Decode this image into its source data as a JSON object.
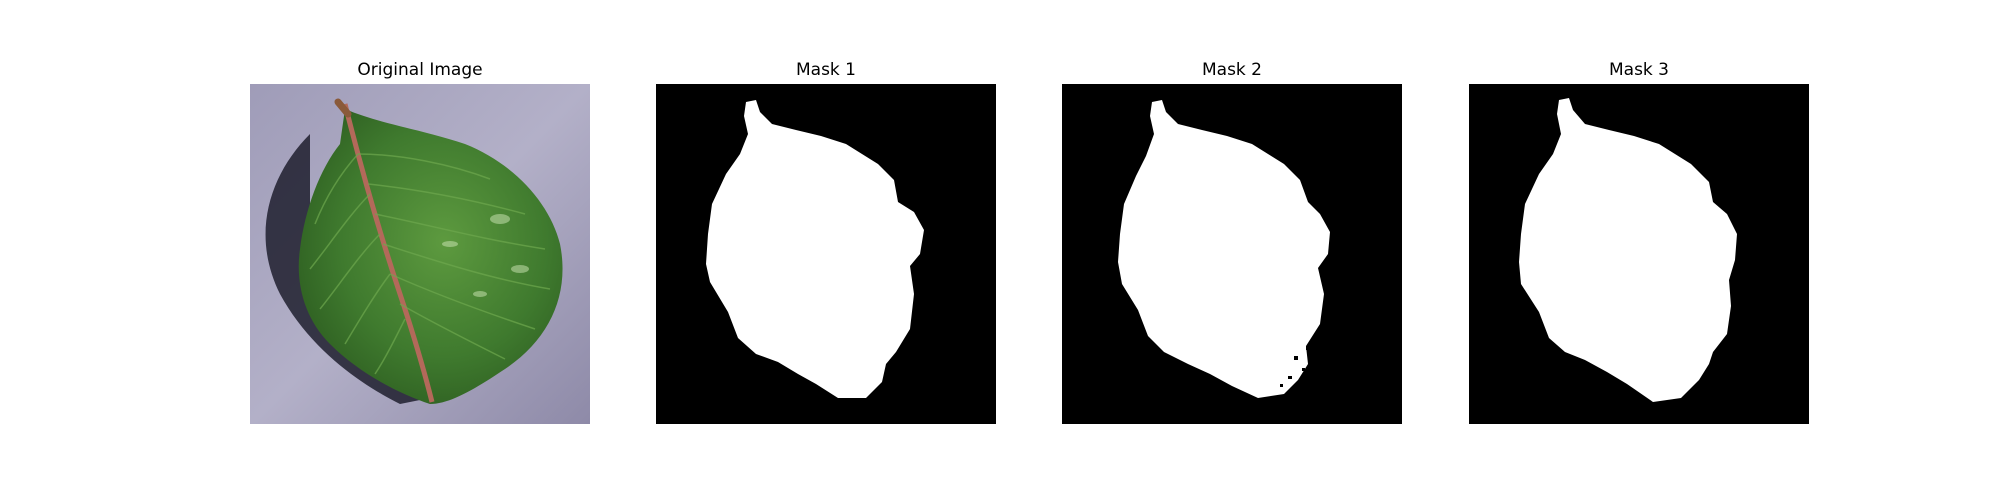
{
  "figure": {
    "panels": [
      {
        "title": "Original Image",
        "kind": "photo",
        "subject": "leaf"
      },
      {
        "title": "Mask 1",
        "kind": "mask"
      },
      {
        "title": "Mask 2",
        "kind": "mask"
      },
      {
        "title": "Mask 3",
        "kind": "mask"
      }
    ]
  },
  "colors": {
    "background": "#ffffff",
    "mask_background": "#000000",
    "mask_foreground": "#ffffff",
    "leaf_green": "#3f7a2e",
    "leaf_stem": "#b3695a",
    "surface_lavender": "#a9a6bf"
  }
}
